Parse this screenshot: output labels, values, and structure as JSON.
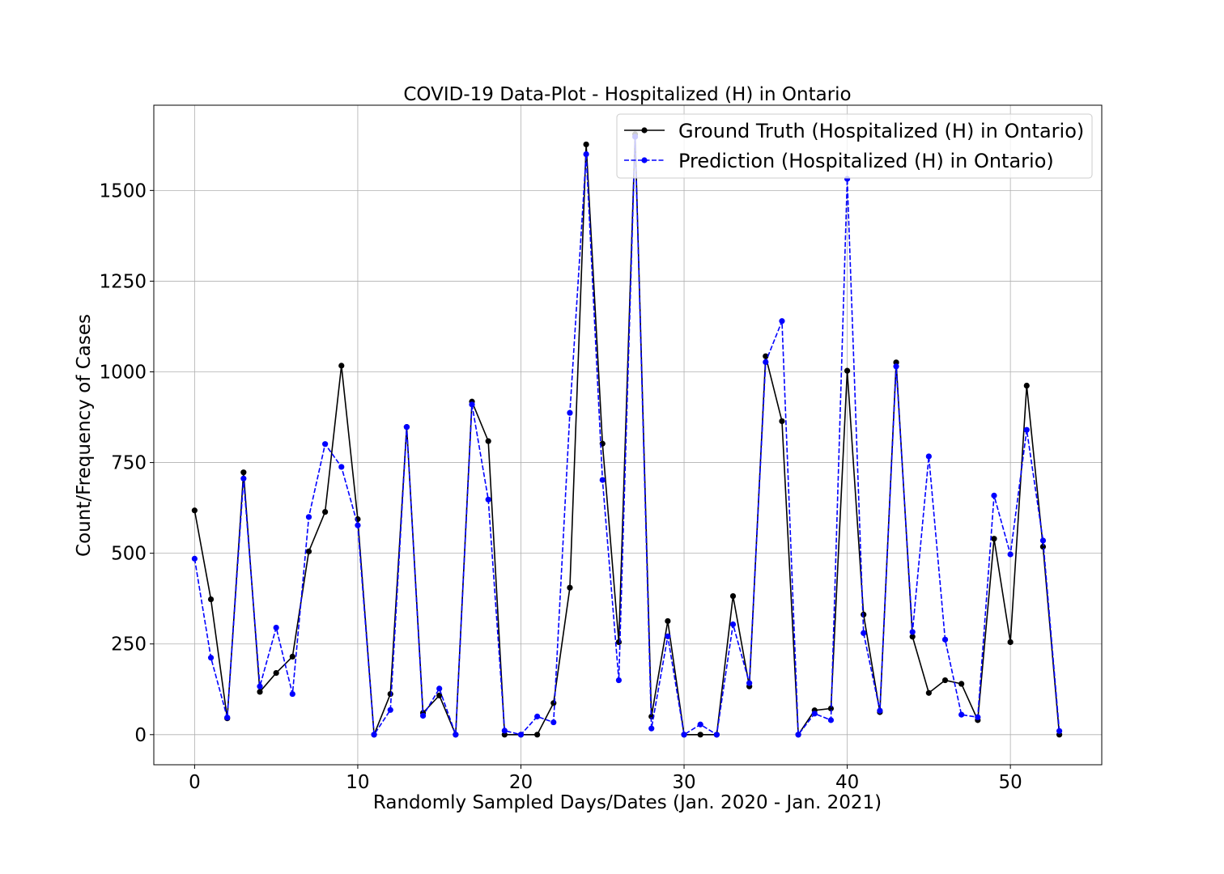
{
  "chart_data": {
    "type": "line",
    "title": "COVID-19 Data-Plot - Hospitalized (H) in Ontario",
    "xlabel": "Randomly Sampled Days/Dates (Jan. 2020 - Jan. 2021)",
    "ylabel": "Count/Frequency of Cases",
    "xlim": [
      -2.5,
      55.6
    ],
    "ylim": [
      -83,
      1735
    ],
    "xticks": [
      0,
      10,
      20,
      30,
      40,
      50
    ],
    "yticks": [
      0,
      250,
      500,
      750,
      1000,
      1250,
      1500
    ],
    "grid": true,
    "legend_position": "top-right",
    "x": [
      0,
      1,
      2,
      3,
      4,
      5,
      6,
      7,
      8,
      9,
      10,
      11,
      12,
      13,
      14,
      15,
      16,
      17,
      18,
      19,
      20,
      21,
      22,
      23,
      24,
      25,
      26,
      27,
      28,
      29,
      30,
      31,
      32,
      33,
      34,
      35,
      36,
      37,
      38,
      39,
      40,
      41,
      42,
      43,
      44,
      45,
      46,
      47,
      48,
      49,
      50,
      51,
      52,
      53
    ],
    "series": [
      {
        "name": "Ground Truth (Hospitalized (H) in Ontario)",
        "color": "#000000",
        "style": "solid",
        "values": [
          618,
          373,
          45,
          723,
          118,
          170,
          215,
          505,
          614,
          1017,
          594,
          0,
          112,
          848,
          60,
          108,
          0,
          918,
          809,
          0,
          0,
          0,
          87,
          405,
          1627,
          802,
          255,
          1655,
          50,
          313,
          0,
          0,
          0,
          382,
          133,
          1043,
          864,
          0,
          67,
          72,
          1003,
          331,
          62,
          1026,
          270,
          115,
          150,
          140,
          40,
          540,
          255,
          962,
          518,
          0
        ]
      },
      {
        "name": "Prediction (Hospitalized (H) in Ontario)",
        "color": "#0000ff",
        "style": "dashed",
        "values": [
          485,
          212,
          47,
          706,
          133,
          295,
          112,
          600,
          801,
          738,
          577,
          0,
          68,
          848,
          52,
          127,
          0,
          910,
          648,
          11,
          0,
          50,
          34,
          887,
          1600,
          702,
          150,
          1648,
          17,
          271,
          0,
          28,
          0,
          304,
          142,
          1027,
          1140,
          0,
          58,
          40,
          1532,
          280,
          66,
          1015,
          283,
          767,
          262,
          55,
          48,
          659,
          497,
          840,
          535,
          10
        ]
      }
    ]
  }
}
